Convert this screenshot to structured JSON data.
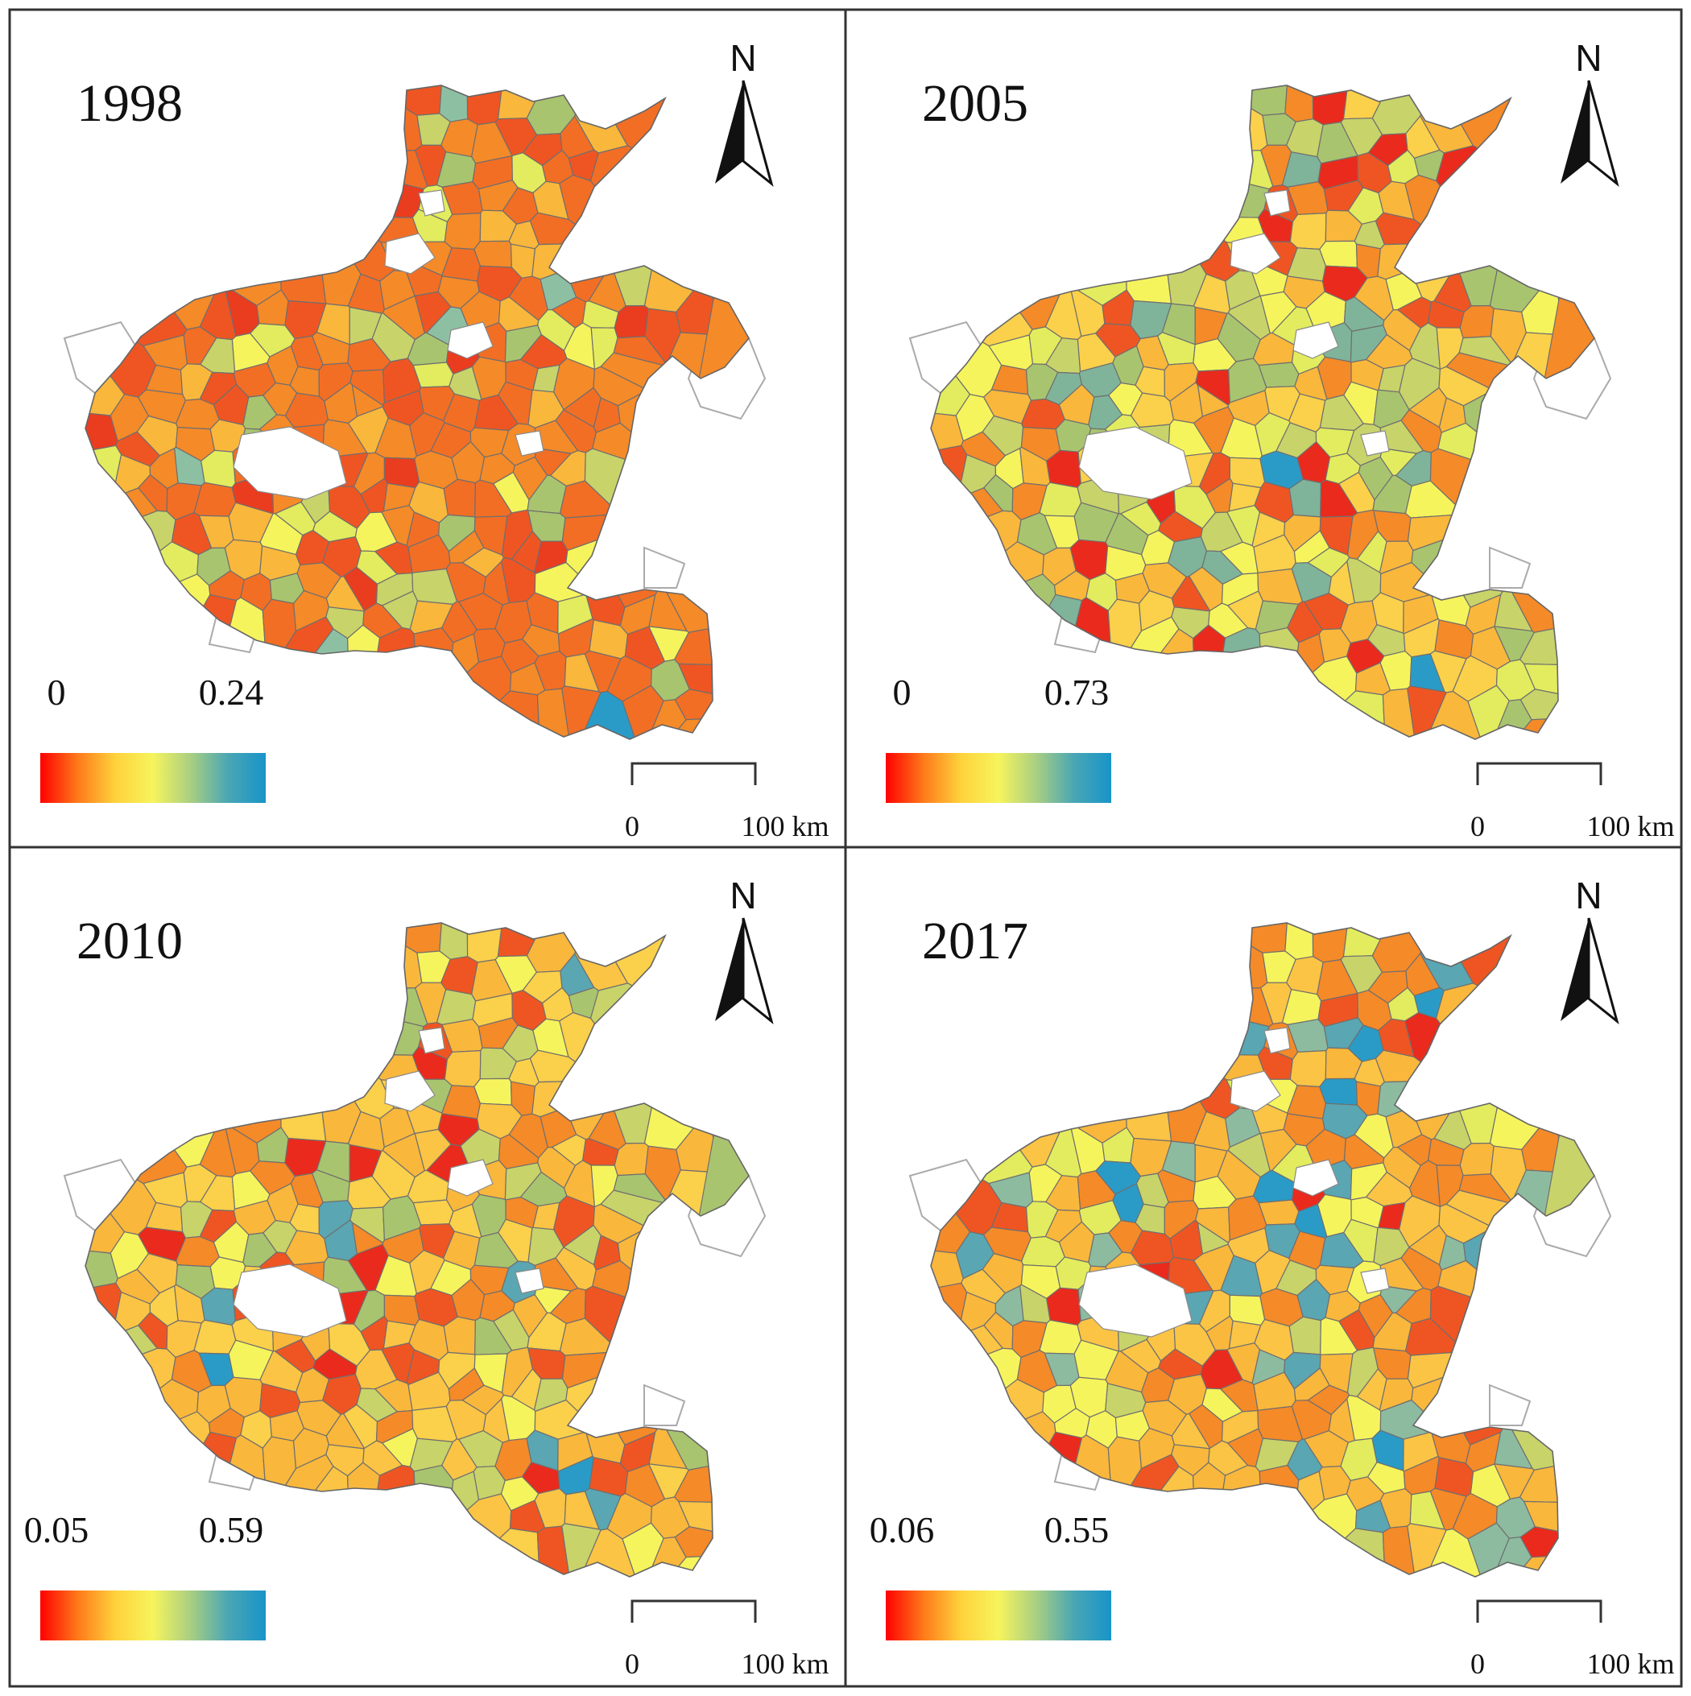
{
  "colorbar": {
    "stops": [
      "#ff0000",
      "#ff7a1a",
      "#ffd23c",
      "#f6f45c",
      "#a9cf82",
      "#4aa6b4",
      "#1894c9"
    ]
  },
  "panels": [
    {
      "year": "1998",
      "legend_min": "0",
      "legend_max": "0.24",
      "north_label": "N",
      "scale_start": "0",
      "scale_end": "100 km",
      "palette": [
        "#f58a28",
        "#f26e25",
        "#ef5522",
        "#ea3c1f",
        "#f9b73c",
        "#c8d36a",
        "#a9c46f",
        "#f6f45c",
        "#e2ec5e",
        "#8dc0a3",
        "#2a9bc7"
      ],
      "weights": [
        12,
        14,
        6,
        2,
        5,
        3,
        2,
        3,
        2,
        1,
        0.6
      ]
    },
    {
      "year": "2005",
      "legend_min": "0",
      "legend_max": "0.73",
      "north_label": "N",
      "scale_start": "0",
      "scale_end": "100 km",
      "palette": [
        "#f9b73c",
        "#fbd04a",
        "#f6f45c",
        "#e2ec5e",
        "#c8d36a",
        "#a9c46f",
        "#7fb49a",
        "#f58a28",
        "#ef5522",
        "#ea2a1c",
        "#2a9bc7"
      ],
      "weights": [
        7,
        5,
        5,
        4,
        5,
        4,
        3,
        5,
        3,
        2,
        0.5
      ]
    },
    {
      "year": "2010",
      "legend_min": "0.05",
      "legend_max": "0.59",
      "north_label": "N",
      "scale_start": "0",
      "scale_end": "100 km",
      "palette": [
        "#f9b73c",
        "#fbc445",
        "#fbd04a",
        "#f6f45c",
        "#c8d36a",
        "#a9c46f",
        "#f58a28",
        "#ef5522",
        "#ea2a1c",
        "#5aa6b2",
        "#2a9bc7"
      ],
      "weights": [
        9,
        6,
        5,
        3,
        3,
        3,
        6,
        4,
        1.5,
        1,
        0.5
      ]
    },
    {
      "year": "2017",
      "legend_min": "0.06",
      "legend_max": "0.55",
      "north_label": "N",
      "scale_start": "0",
      "scale_end": "100 km",
      "palette": [
        "#f9b73c",
        "#fbc445",
        "#f6f45c",
        "#e2ec5e",
        "#c8d36a",
        "#8dbba0",
        "#5aa6b2",
        "#2a9bc7",
        "#f58a28",
        "#ef5522",
        "#ea2a1c"
      ],
      "weights": [
        9,
        5,
        3,
        2,
        3,
        3,
        3,
        1,
        6,
        3,
        1.5
      ]
    }
  ]
}
